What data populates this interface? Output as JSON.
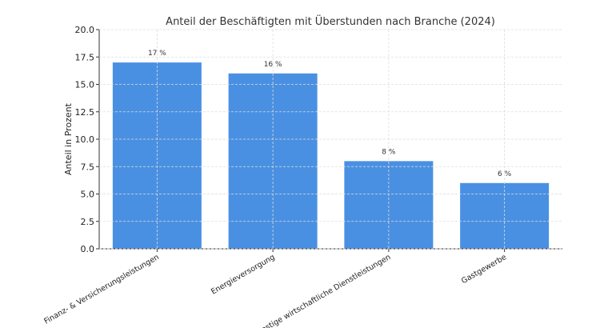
{
  "chart_data": {
    "type": "bar",
    "title": "Anteil der Beschäftigten mit Überstunden nach Branche (2024)",
    "xlabel": "",
    "ylabel": "Anteil in Prozent",
    "categories": [
      "Finanz- & Versicherungsleistungen",
      "Energieversorgung",
      "Sonstige wirtschaftliche Dienstleistungen",
      "Gastgewerbe"
    ],
    "values": [
      17,
      16,
      8,
      6
    ],
    "data_labels": [
      "17 %",
      "16 %",
      "8 %",
      "6 %"
    ],
    "ylim": [
      0,
      20
    ],
    "yticks": [
      "0.0",
      "2.5",
      "5.0",
      "7.5",
      "10.0",
      "12.5",
      "15.0",
      "17.5",
      "20.0"
    ],
    "grid": true,
    "bar_color": "#4a90e2"
  }
}
